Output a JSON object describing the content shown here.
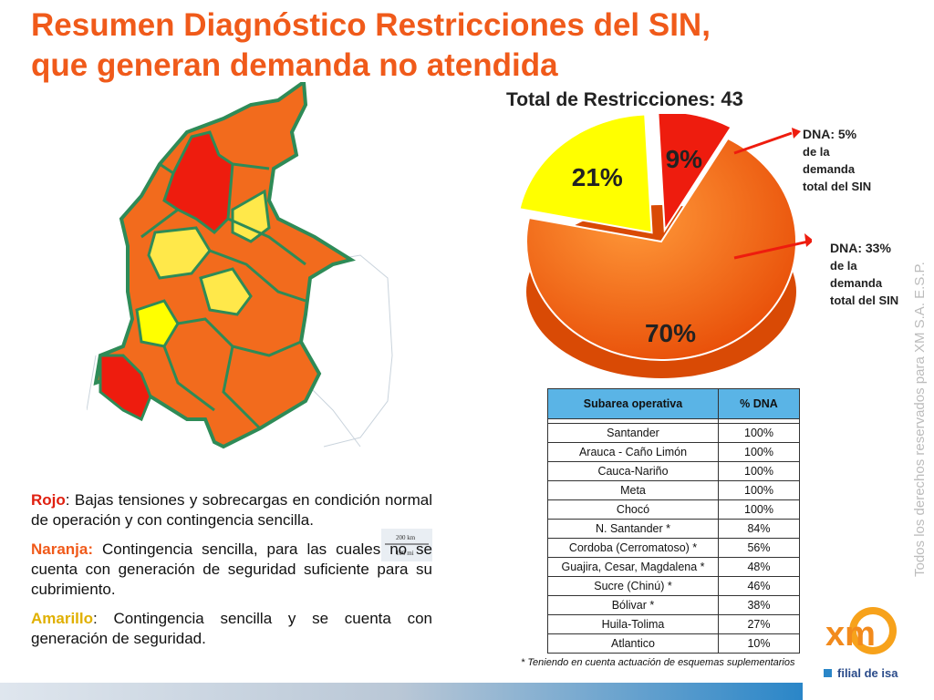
{
  "title": {
    "line1": "Resumen Diagnóstico Restricciones del SIN,",
    "line2": "que generan demanda no atendida"
  },
  "pie": {
    "heading_prefix": "Total de Restricciones:",
    "heading_total": "43"
  },
  "chart_data": {
    "type": "pie",
    "title": "Total de Restricciones: 43",
    "categories": [
      "Rojo",
      "Naranja",
      "Amarillo"
    ],
    "values": [
      9,
      70,
      21
    ],
    "labels": [
      "9%",
      "70%",
      "21%"
    ],
    "colors": [
      "#ee1c0e",
      "#f26b1d",
      "#ffff00"
    ]
  },
  "callouts": {
    "red": {
      "line1": "DNA: 5%",
      "line2": "de la",
      "line3": "demanda",
      "line4": "total del SIN"
    },
    "orange": {
      "line1": "DNA: 33%",
      "line2": "de la",
      "line3": "demanda",
      "line4": "total del SIN"
    }
  },
  "legend": {
    "red_label": "Rojo",
    "red_text": ": Bajas tensiones y sobrecargas en condición normal de operación y con contingencia sencilla.",
    "orange_label": "Naranja:",
    "orange_text": " Contingencia sencilla, para las cuales no se cuenta con generación de seguridad suficiente para su cubrimiento.",
    "yellow_label": "Amarillo",
    "yellow_text": ": Contingencia sencilla y se cuenta con generación de seguridad."
  },
  "map_scale": {
    "km": "200 km",
    "mi": "100 mi"
  },
  "table": {
    "headers": [
      "Subarea operativa",
      "% DNA"
    ],
    "rows": [
      [
        "Santander",
        "100%"
      ],
      [
        "Arauca - Caño Limón",
        "100%"
      ],
      [
        "Cauca-Nariño",
        "100%"
      ],
      [
        "Meta",
        "100%"
      ],
      [
        "Chocó",
        "100%"
      ],
      [
        "N. Santander *",
        "84%"
      ],
      [
        "Cordoba (Cerromatoso) *",
        "56%"
      ],
      [
        "Guajira, Cesar, Magdalena *",
        "48%"
      ],
      [
        "Sucre (Chinú) *",
        "46%"
      ],
      [
        "Bólivar *",
        "38%"
      ],
      [
        "Huila-Tolima",
        "27%"
      ],
      [
        "Atlantico",
        "10%"
      ]
    ]
  },
  "footnote": "* Teniendo en cuenta actuación de esquemas suplementarios",
  "watermark": "Todos los derechos reservados para XM S.A. E.S.P.",
  "logo": {
    "brand": "xm",
    "subtitle": "filial de isa"
  },
  "colors": {
    "title": "#f05a1a",
    "red": "#ee1c0e",
    "orange": "#f26b1d",
    "yellow": "#ffff00",
    "table_header": "#5ab4e6"
  }
}
